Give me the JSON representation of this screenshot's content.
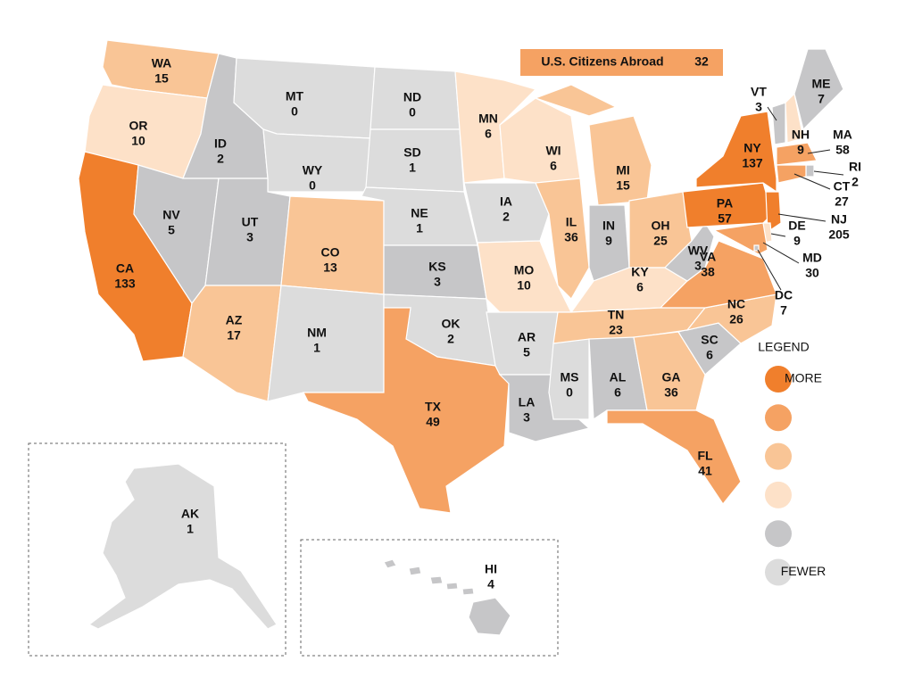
{
  "badge": {
    "label": "U.S. Citizens Abroad",
    "value": 32,
    "color": "#f5a263"
  },
  "legend": {
    "title": "LEGEND",
    "items": [
      {
        "label": "MORE",
        "color": "#f07f2c"
      },
      {
        "color": "#f5a263"
      },
      {
        "color": "#f9c596"
      },
      {
        "color": "#fde1c8"
      },
      {
        "color": "#c6c6c8"
      },
      {
        "label": "FEWER",
        "color": "#dcdcdc"
      }
    ]
  },
  "states": [
    {
      "abbr": "WA",
      "value": 15,
      "color": "#f9c596"
    },
    {
      "abbr": "OR",
      "value": 10,
      "color": "#fde1c8"
    },
    {
      "abbr": "CA",
      "value": 133,
      "color": "#f07f2c"
    },
    {
      "abbr": "ID",
      "value": 2,
      "color": "#c6c6c8"
    },
    {
      "abbr": "NV",
      "value": 5,
      "color": "#c6c6c8"
    },
    {
      "abbr": "MT",
      "value": 0,
      "color": "#dcdcdc"
    },
    {
      "abbr": "WY",
      "value": 0,
      "color": "#dcdcdc"
    },
    {
      "abbr": "UT",
      "value": 3,
      "color": "#c6c6c8"
    },
    {
      "abbr": "CO",
      "value": 13,
      "color": "#f9c596"
    },
    {
      "abbr": "AZ",
      "value": 17,
      "color": "#f9c596"
    },
    {
      "abbr": "NM",
      "value": 1,
      "color": "#dcdcdc"
    },
    {
      "abbr": "ND",
      "value": 0,
      "color": "#dcdcdc"
    },
    {
      "abbr": "SD",
      "value": 1,
      "color": "#dcdcdc"
    },
    {
      "abbr": "NE",
      "value": 1,
      "color": "#dcdcdc"
    },
    {
      "abbr": "KS",
      "value": 3,
      "color": "#c6c6c8"
    },
    {
      "abbr": "OK",
      "value": 2,
      "color": "#dcdcdc"
    },
    {
      "abbr": "TX",
      "value": 49,
      "color": "#f5a263"
    },
    {
      "abbr": "MN",
      "value": 6,
      "color": "#fde1c8"
    },
    {
      "abbr": "IA",
      "value": 2,
      "color": "#dcdcdc"
    },
    {
      "abbr": "MO",
      "value": 10,
      "color": "#fde1c8"
    },
    {
      "abbr": "AR",
      "value": 5,
      "color": "#dcdcdc"
    },
    {
      "abbr": "LA",
      "value": 3,
      "color": "#c6c6c8"
    },
    {
      "abbr": "WI",
      "value": 6,
      "color": "#fde1c8"
    },
    {
      "abbr": "IL",
      "value": 36,
      "color": "#f9c596"
    },
    {
      "abbr": "MI",
      "value": 15,
      "color": "#f9c596"
    },
    {
      "abbr": "IN",
      "value": 9,
      "color": "#c6c6c8"
    },
    {
      "abbr": "OH",
      "value": 25,
      "color": "#f9c596"
    },
    {
      "abbr": "KY",
      "value": 6,
      "color": "#fde1c8"
    },
    {
      "abbr": "TN",
      "value": 23,
      "color": "#f9c596"
    },
    {
      "abbr": "MS",
      "value": 0,
      "color": "#dcdcdc"
    },
    {
      "abbr": "AL",
      "value": 6,
      "color": "#c6c6c8"
    },
    {
      "abbr": "GA",
      "value": 36,
      "color": "#f9c596"
    },
    {
      "abbr": "FL",
      "value": 41,
      "color": "#f5a263"
    },
    {
      "abbr": "SC",
      "value": 6,
      "color": "#c6c6c8"
    },
    {
      "abbr": "NC",
      "value": 26,
      "color": "#f9c596"
    },
    {
      "abbr": "VA",
      "value": 38,
      "color": "#f5a263"
    },
    {
      "abbr": "WV",
      "value": 3,
      "color": "#c6c6c8"
    },
    {
      "abbr": "PA",
      "value": 57,
      "color": "#f07f2c"
    },
    {
      "abbr": "NY",
      "value": 137,
      "color": "#f07f2c"
    },
    {
      "abbr": "VT",
      "value": 3,
      "color": "#c6c6c8"
    },
    {
      "abbr": "NH",
      "value": 9,
      "color": "#fde1c8"
    },
    {
      "abbr": "ME",
      "value": 7,
      "color": "#c6c6c8"
    },
    {
      "abbr": "MA",
      "value": 58,
      "color": "#f5a263"
    },
    {
      "abbr": "RI",
      "value": 2,
      "color": "#c6c6c8"
    },
    {
      "abbr": "CT",
      "value": 27,
      "color": "#f5a263"
    },
    {
      "abbr": "NJ",
      "value": 205,
      "color": "#f07f2c"
    },
    {
      "abbr": "DE",
      "value": 9,
      "color": "#fde1c8"
    },
    {
      "abbr": "MD",
      "value": 30,
      "color": "#f5a263"
    },
    {
      "abbr": "DC",
      "value": 7,
      "color": "#c6c6c8"
    },
    {
      "abbr": "AK",
      "value": 1,
      "color": "#dcdcdc"
    },
    {
      "abbr": "HI",
      "value": 4,
      "color": "#c6c6c8"
    }
  ]
}
